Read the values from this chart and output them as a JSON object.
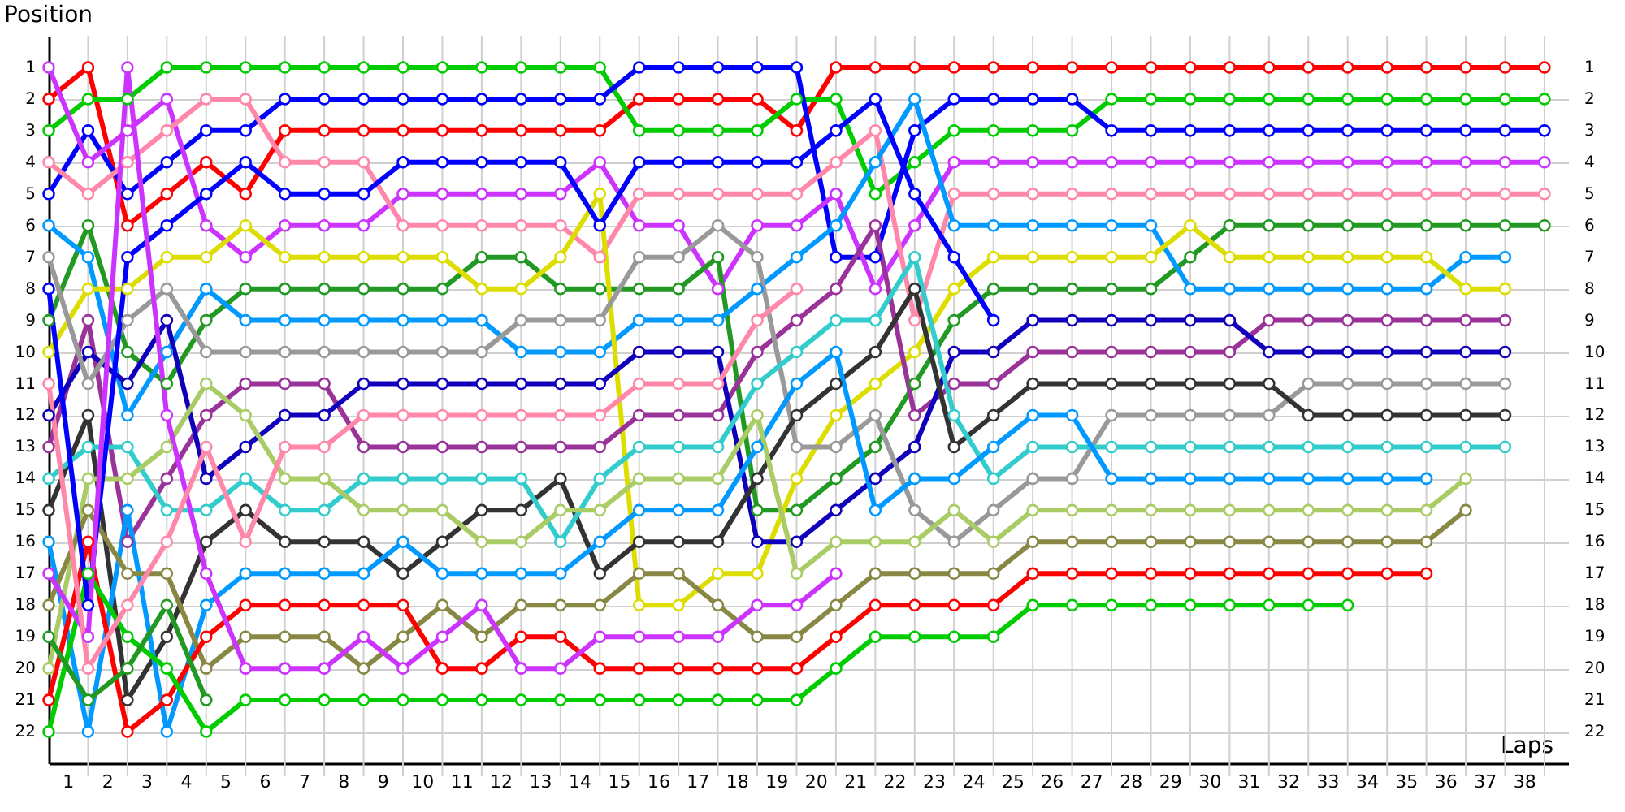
{
  "chart_data": {
    "type": "line",
    "xlabel": "Laps",
    "ylabel": "Position",
    "x": [
      0,
      1,
      2,
      3,
      4,
      5,
      6,
      7,
      8,
      9,
      10,
      11,
      12,
      13,
      14,
      15,
      16,
      17,
      18,
      19,
      20,
      21,
      22,
      23,
      24,
      25,
      26,
      27,
      28,
      29,
      30,
      31,
      32,
      33,
      34,
      35,
      36,
      37,
      38
    ],
    "xlim": [
      0,
      38.6
    ],
    "xticks": [
      {
        "value": 0.5,
        "label": "1"
      },
      {
        "value": 1.5,
        "label": "2"
      },
      {
        "value": 2.5,
        "label": "3"
      },
      {
        "value": 3.5,
        "label": "4"
      },
      {
        "value": 4.5,
        "label": "5"
      },
      {
        "value": 5.5,
        "label": "6"
      },
      {
        "value": 6.5,
        "label": "7"
      },
      {
        "value": 7.5,
        "label": "8"
      },
      {
        "value": 8.5,
        "label": "9"
      },
      {
        "value": 9.5,
        "label": "10"
      },
      {
        "value": 10.5,
        "label": "11"
      },
      {
        "value": 11.5,
        "label": "12"
      },
      {
        "value": 12.5,
        "label": "13"
      },
      {
        "value": 13.5,
        "label": "14"
      },
      {
        "value": 14.5,
        "label": "15"
      },
      {
        "value": 15.5,
        "label": "16"
      },
      {
        "value": 16.5,
        "label": "17"
      },
      {
        "value": 17.5,
        "label": "18"
      },
      {
        "value": 18.5,
        "label": "19"
      },
      {
        "value": 19.5,
        "label": "20"
      },
      {
        "value": 20.5,
        "label": "21"
      },
      {
        "value": 21.5,
        "label": "22"
      },
      {
        "value": 22.5,
        "label": "23"
      },
      {
        "value": 23.5,
        "label": "24"
      },
      {
        "value": 24.5,
        "label": "25"
      },
      {
        "value": 25.5,
        "label": "26"
      },
      {
        "value": 26.5,
        "label": "27"
      },
      {
        "value": 27.5,
        "label": "28"
      },
      {
        "value": 28.5,
        "label": "29"
      },
      {
        "value": 29.5,
        "label": "30"
      },
      {
        "value": 30.5,
        "label": "31"
      },
      {
        "value": 31.5,
        "label": "32"
      },
      {
        "value": 32.5,
        "label": "33"
      },
      {
        "value": 33.5,
        "label": "34"
      },
      {
        "value": 34.5,
        "label": "35"
      },
      {
        "value": 35.5,
        "label": "36"
      },
      {
        "value": 36.5,
        "label": "37"
      },
      {
        "value": 37.5,
        "label": "38"
      },
      {
        "value": 1,
        "label": null
      },
      {
        "value": 2,
        "label": null
      },
      {
        "value": 3,
        "label": null
      },
      {
        "value": 4,
        "label": null
      },
      {
        "value": 5,
        "label": null
      },
      {
        "value": 6,
        "label": null
      },
      {
        "value": 7,
        "label": null
      },
      {
        "value": 8,
        "label": null
      },
      {
        "value": 9,
        "label": null
      },
      {
        "value": 10,
        "label": null
      },
      {
        "value": 11,
        "label": null
      },
      {
        "value": 12,
        "label": null
      },
      {
        "value": 13,
        "label": null
      },
      {
        "value": 14,
        "label": null
      },
      {
        "value": 15,
        "label": null
      },
      {
        "value": 16,
        "label": null
      },
      {
        "value": 17,
        "label": null
      },
      {
        "value": 18,
        "label": null
      },
      {
        "value": 19,
        "label": null
      },
      {
        "value": 20,
        "label": null
      },
      {
        "value": 21,
        "label": null
      },
      {
        "value": 22,
        "label": null
      },
      {
        "value": 23,
        "label": null
      },
      {
        "value": 24,
        "label": null
      },
      {
        "value": 25,
        "label": null
      },
      {
        "value": 26,
        "label": null
      },
      {
        "value": 27,
        "label": null
      },
      {
        "value": 28,
        "label": null
      },
      {
        "value": 29,
        "label": null
      },
      {
        "value": 30,
        "label": null
      },
      {
        "value": 31,
        "label": null
      },
      {
        "value": 32,
        "label": null
      },
      {
        "value": 33,
        "label": null
      },
      {
        "value": 34,
        "label": null
      },
      {
        "value": 35,
        "label": null
      },
      {
        "value": 36,
        "label": null
      },
      {
        "value": 37,
        "label": null
      },
      {
        "value": 38,
        "label": null
      }
    ],
    "ylim": [
      23,
      0
    ],
    "yticks": [
      1,
      2,
      3,
      4,
      5,
      6,
      7,
      8,
      9,
      10,
      11,
      12,
      13,
      14,
      15,
      16,
      17,
      18,
      19,
      20,
      21,
      22
    ],
    "y2lim": [
      23,
      0
    ],
    "y2ticks": [
      1,
      2,
      3,
      4,
      5,
      6,
      7,
      8,
      9,
      10,
      11,
      12,
      13,
      14,
      15,
      16,
      17,
      18,
      19,
      20,
      21,
      22
    ],
    "grid": true,
    "legend": false,
    "marker": "circle",
    "line_style": "solid",
    "series": [
      {
        "color": "#ff0000",
        "values": [
          2,
          1,
          6,
          5,
          4,
          5,
          3,
          3,
          3,
          3,
          3,
          3,
          3,
          3,
          3,
          2,
          2,
          2,
          2,
          3,
          1,
          1,
          1,
          1,
          1,
          1,
          1,
          1,
          1,
          1,
          1,
          1,
          1,
          1,
          1,
          1,
          1,
          1,
          1
        ]
      },
      {
        "color": "#00cc00",
        "values": [
          3,
          2,
          2,
          1,
          1,
          1,
          1,
          1,
          1,
          1,
          1,
          1,
          1,
          1,
          1,
          3,
          3,
          3,
          3,
          2,
          2,
          5,
          4,
          3,
          3,
          3,
          3,
          2,
          2,
          2,
          2,
          2,
          2,
          2,
          2,
          2,
          2,
          2,
          2
        ]
      },
      {
        "color": "#0000ff",
        "values": [
          5,
          3,
          5,
          4,
          3,
          3,
          2,
          2,
          2,
          2,
          2,
          2,
          2,
          2,
          2,
          1,
          1,
          1,
          1,
          1,
          7,
          7,
          3,
          2,
          2,
          2,
          2,
          3,
          3,
          3,
          3,
          3,
          3,
          3,
          3,
          3,
          3,
          3,
          3
        ]
      },
      {
        "color": "#cc33ff",
        "values": [
          1,
          4,
          3,
          2,
          6,
          7,
          6,
          6,
          6,
          5,
          5,
          5,
          5,
          5,
          4,
          6,
          6,
          8,
          6,
          6,
          5,
          8,
          6,
          4,
          4,
          4,
          4,
          4,
          4,
          4,
          4,
          4,
          4,
          4,
          4,
          4,
          4,
          4,
          4
        ]
      },
      {
        "color": "#ff88aa",
        "values": [
          4,
          5,
          4,
          3,
          2,
          2,
          4,
          4,
          4,
          6,
          6,
          6,
          6,
          6,
          7,
          5,
          5,
          5,
          5,
          5,
          4,
          3,
          9,
          5,
          5,
          5,
          5,
          5,
          5,
          5,
          5,
          5,
          5,
          5,
          5,
          5,
          5,
          5,
          5
        ]
      },
      {
        "color": "#229922",
        "values": [
          9,
          6,
          10,
          11,
          9,
          8,
          8,
          8,
          8,
          8,
          8,
          7,
          7,
          8,
          8,
          8,
          8,
          7,
          15,
          15,
          14,
          13,
          11,
          9,
          8,
          8,
          8,
          8,
          8,
          7,
          6,
          6,
          6,
          6,
          6,
          6,
          6,
          6,
          6
        ]
      },
      {
        "color": "#0099ff",
        "values": [
          6,
          7,
          12,
          10,
          8,
          9,
          9,
          9,
          9,
          9,
          9,
          9,
          10,
          10,
          10,
          9,
          9,
          9,
          8,
          7,
          6,
          4,
          2,
          6,
          6,
          6,
          6,
          6,
          6,
          8,
          8,
          8,
          8,
          8,
          8,
          8,
          7,
          7,
          null
        ]
      },
      {
        "color": "#dddd00",
        "values": [
          10,
          8,
          8,
          7,
          7,
          6,
          7,
          7,
          7,
          7,
          7,
          8,
          8,
          7,
          5,
          18,
          18,
          17,
          17,
          14,
          12,
          11,
          10,
          8,
          7,
          7,
          7,
          7,
          7,
          6,
          7,
          7,
          7,
          7,
          7,
          7,
          8,
          8,
          null
        ]
      },
      {
        "color": "#993399",
        "values": [
          13,
          9,
          16,
          14,
          12,
          11,
          11,
          11,
          13,
          13,
          13,
          13,
          13,
          13,
          13,
          12,
          12,
          12,
          10,
          9,
          8,
          6,
          12,
          11,
          11,
          10,
          10,
          10,
          10,
          10,
          10,
          9,
          9,
          9,
          9,
          9,
          9,
          9,
          null
        ]
      },
      {
        "color": "#1100bb",
        "values": [
          12,
          10,
          11,
          9,
          14,
          13,
          12,
          12,
          11,
          11,
          11,
          11,
          11,
          11,
          11,
          10,
          10,
          10,
          16,
          16,
          15,
          14,
          13,
          10,
          10,
          9,
          9,
          9,
          9,
          9,
          9,
          10,
          10,
          10,
          10,
          10,
          10,
          10,
          null
        ]
      },
      {
        "color": "#999999",
        "values": [
          7,
          11,
          9,
          8,
          10,
          10,
          10,
          10,
          10,
          10,
          10,
          10,
          9,
          9,
          9,
          7,
          7,
          6,
          7,
          13,
          13,
          12,
          15,
          16,
          15,
          14,
          14,
          12,
          12,
          12,
          12,
          12,
          11,
          11,
          11,
          11,
          11,
          11,
          null
        ]
      },
      {
        "color": "#333333",
        "values": [
          15,
          12,
          21,
          19,
          16,
          15,
          16,
          16,
          16,
          17,
          16,
          15,
          15,
          14,
          17,
          16,
          16,
          16,
          14,
          12,
          11,
          10,
          8,
          13,
          12,
          11,
          11,
          11,
          11,
          11,
          11,
          11,
          12,
          12,
          12,
          12,
          12,
          12,
          null
        ]
      },
      {
        "color": "#33cccc",
        "values": [
          14,
          13,
          13,
          15,
          15,
          14,
          15,
          15,
          14,
          14,
          14,
          14,
          14,
          16,
          14,
          13,
          13,
          13,
          11,
          10,
          9,
          9,
          7,
          12,
          14,
          13,
          13,
          13,
          13,
          13,
          13,
          13,
          13,
          13,
          13,
          13,
          13,
          13,
          null
        ]
      },
      {
        "color": "#0099ff",
        "values": [
          16,
          22,
          15,
          22,
          18,
          17,
          17,
          17,
          17,
          16,
          17,
          17,
          17,
          17,
          16,
          15,
          15,
          15,
          13,
          11,
          10,
          15,
          14,
          14,
          13,
          12,
          12,
          14,
          14,
          14,
          14,
          14,
          14,
          14,
          14,
          14,
          null,
          null,
          null
        ]
      },
      {
        "color": "#aacc66",
        "values": [
          20,
          14,
          14,
          13,
          11,
          12,
          14,
          14,
          15,
          15,
          15,
          16,
          16,
          15,
          15,
          14,
          14,
          14,
          12,
          17,
          16,
          16,
          16,
          15,
          16,
          15,
          15,
          15,
          15,
          15,
          15,
          15,
          15,
          15,
          15,
          15,
          14,
          null,
          null
        ]
      },
      {
        "color": "#888844",
        "values": [
          18,
          15,
          17,
          17,
          20,
          19,
          19,
          19,
          20,
          19,
          18,
          19,
          18,
          18,
          18,
          17,
          17,
          18,
          19,
          19,
          18,
          17,
          17,
          17,
          17,
          16,
          16,
          16,
          16,
          16,
          16,
          16,
          16,
          16,
          16,
          16,
          15,
          null,
          null
        ]
      },
      {
        "color": "#ff0000",
        "values": [
          21,
          16,
          22,
          21,
          19,
          18,
          18,
          18,
          18,
          18,
          20,
          20,
          19,
          19,
          20,
          20,
          20,
          20,
          20,
          20,
          19,
          18,
          18,
          18,
          18,
          17,
          17,
          17,
          17,
          17,
          17,
          17,
          17,
          17,
          17,
          17,
          null,
          null,
          null
        ]
      },
      {
        "color": "#00cc00",
        "values": [
          22,
          17,
          19,
          20,
          22,
          21,
          21,
          21,
          21,
          21,
          21,
          21,
          21,
          21,
          21,
          21,
          21,
          21,
          21,
          21,
          20,
          19,
          19,
          19,
          19,
          18,
          18,
          18,
          18,
          18,
          18,
          18,
          18,
          18,
          null,
          null,
          null,
          null,
          null
        ]
      },
      {
        "color": "#0000ff",
        "values": [
          8,
          18,
          7,
          6,
          5,
          4,
          5,
          5,
          5,
          4,
          4,
          4,
          4,
          4,
          6,
          4,
          4,
          4,
          4,
          4,
          3,
          2,
          5,
          7,
          9,
          null,
          null,
          null,
          null,
          null,
          null,
          null,
          null,
          null,
          null,
          null,
          null,
          null,
          null
        ]
      },
      {
        "color": "#cc33ff",
        "values": [
          17,
          19,
          1,
          12,
          17,
          20,
          20,
          20,
          19,
          20,
          19,
          18,
          20,
          20,
          19,
          19,
          19,
          19,
          18,
          18,
          17,
          null,
          null,
          null,
          null,
          null,
          null,
          null,
          null,
          null,
          null,
          null,
          null,
          null,
          null,
          null,
          null,
          null,
          null
        ]
      },
      {
        "color": "#ff88aa",
        "values": [
          11,
          20,
          18,
          16,
          13,
          16,
          13,
          13,
          12,
          12,
          12,
          12,
          12,
          12,
          12,
          11,
          11,
          11,
          9,
          8,
          null,
          null,
          null,
          null,
          null,
          null,
          null,
          null,
          null,
          null,
          null,
          null,
          null,
          null,
          null,
          null,
          null,
          null,
          null
        ]
      },
      {
        "color": "#229922",
        "values": [
          19,
          21,
          20,
          18,
          21,
          null,
          null,
          null,
          null,
          null,
          null,
          null,
          null,
          null,
          null,
          null,
          null,
          null,
          null,
          null,
          null,
          null,
          null,
          null,
          null,
          null,
          null,
          null,
          null,
          null,
          null,
          null,
          null,
          null,
          null,
          null,
          null,
          null,
          null
        ]
      }
    ]
  }
}
